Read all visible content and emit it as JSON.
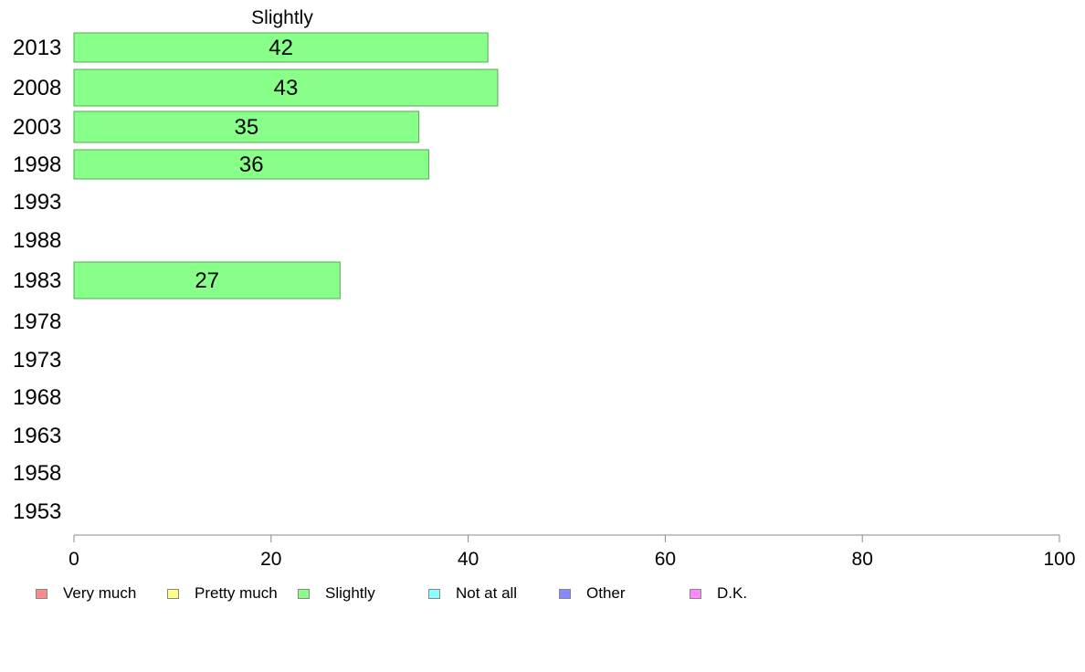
{
  "chart_data": {
    "type": "bar",
    "orientation": "horizontal",
    "title": "Slightly",
    "categories": [
      "2013",
      "2008",
      "2003",
      "1998",
      "1993",
      "1988",
      "1983",
      "1978",
      "1973",
      "1968",
      "1963",
      "1958",
      "1953"
    ],
    "series": [
      {
        "name": "Slightly",
        "values": [
          42,
          43,
          35,
          36,
          null,
          null,
          27,
          null,
          null,
          null,
          null,
          null,
          null
        ]
      }
    ],
    "data_labels": [
      "42",
      "43",
      "35",
      "36",
      "",
      "",
      "27",
      "",
      "",
      "",
      "",
      "",
      ""
    ],
    "x_ticks": [
      "0",
      "20",
      "40",
      "60",
      "80",
      "100"
    ],
    "xlim": [
      0,
      100
    ],
    "xlabel": "",
    "ylabel": "",
    "grid": false,
    "bar_color": "#88ff88",
    "legend_position": "bottom",
    "legend": [
      {
        "label": "Very much",
        "color": "#ff8888"
      },
      {
        "label": "Pretty much",
        "color": "#ffff88"
      },
      {
        "label": "Slightly",
        "color": "#88ff88"
      },
      {
        "label": "Not at all",
        "color": "#88ffff"
      },
      {
        "label": "Other",
        "color": "#8888ff"
      },
      {
        "label": "D.K.",
        "color": "#ff88ff"
      }
    ]
  }
}
